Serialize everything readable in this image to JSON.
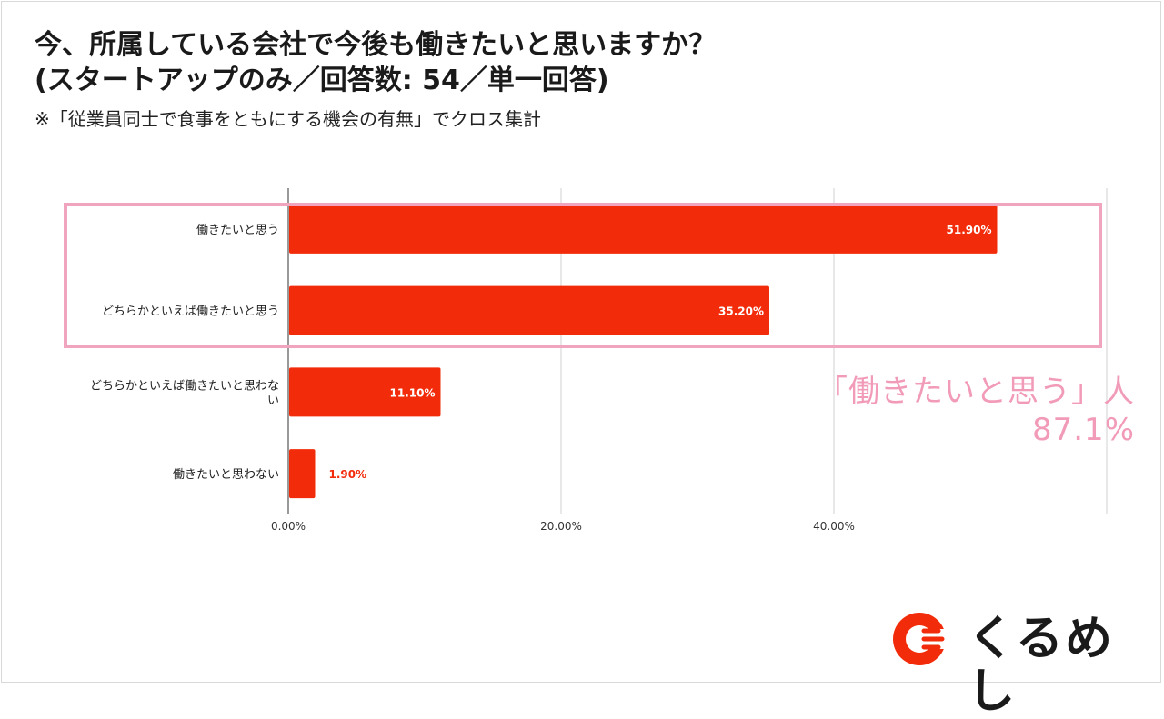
{
  "page": {
    "title_line1": "今、所属している会社で今後も働きたいと思いますか？",
    "title_line2": "(スタートアップのみ／回答数: 54／単一回答)",
    "subtitle": "※「従業員同士で食事をともにする機会の有無」でクロス集計",
    "callout_line1": "「働きたいと思う」人",
    "callout_line2": "87.1%",
    "logo_text": "くるめし"
  },
  "colors": {
    "bar": "#f22c0a",
    "highlight": "#f0a4bd",
    "gridline": "#d0d0d0",
    "axis": "#333333",
    "logo_accent": "#f22c0a"
  },
  "chart_data": {
    "type": "bar",
    "orientation": "horizontal",
    "categories": [
      "働きたいと思う",
      "どちらかといえば働きたいと思う",
      "どちらかといえば働きたいと思わない",
      "働きたいと思わない"
    ],
    "values": [
      51.9,
      35.2,
      11.1,
      1.9
    ],
    "value_labels": [
      "51.90%",
      "35.20%",
      "11.10%",
      "1.90%"
    ],
    "xlim": [
      0,
      60
    ],
    "xticks": [
      0,
      20,
      40,
      60
    ],
    "xtick_labels": [
      "0.00%",
      "20.00%",
      "40.00%",
      ""
    ],
    "grid": true,
    "title": "",
    "xlabel": "",
    "ylabel": ""
  }
}
